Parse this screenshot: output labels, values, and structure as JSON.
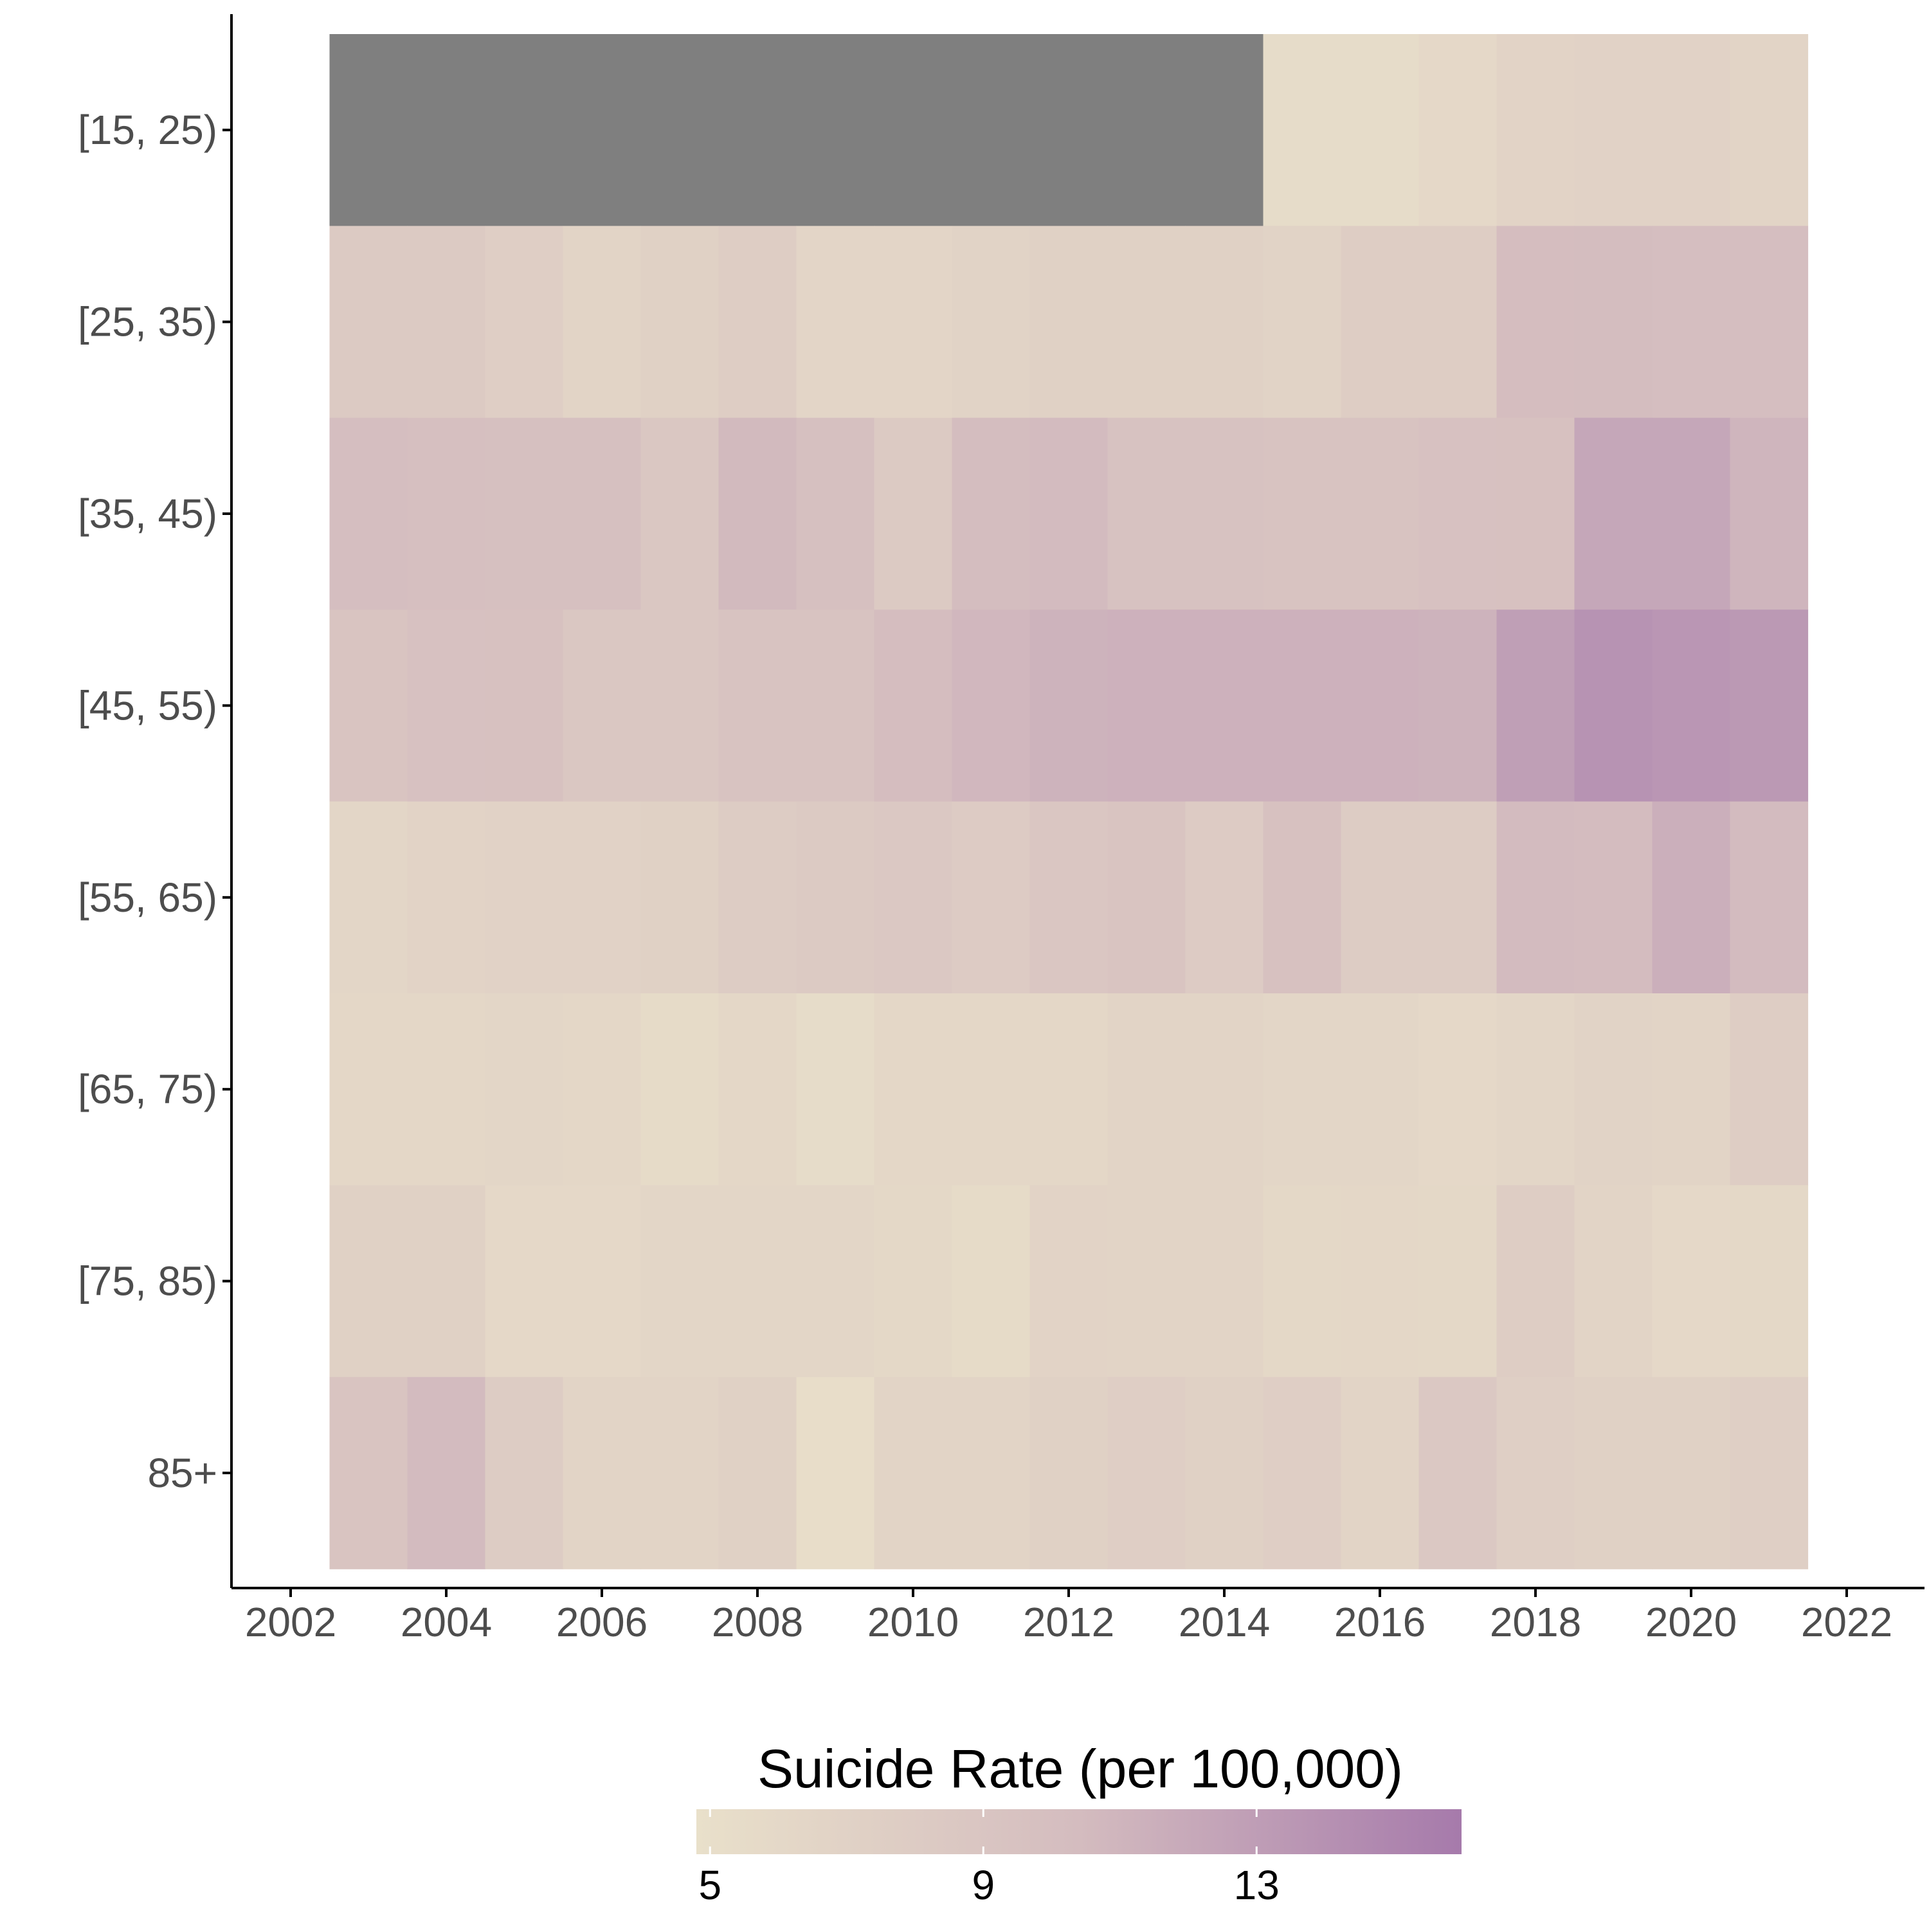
{
  "colors": {
    "low": "#e9e0ca",
    "mid": "#d4bcbf",
    "high": "#a67aab",
    "missing": "#7f7f7f",
    "axis": "#000000",
    "tick_text": "#4d4d4d"
  },
  "chart_data": {
    "type": "heatmap",
    "xlabel": "",
    "ylabel": "",
    "x_axis": {
      "lim": [
        2002,
        2023
      ],
      "ticks": [
        2002,
        2004,
        2006,
        2008,
        2010,
        2012,
        2014,
        2016,
        2018,
        2020,
        2022
      ],
      "tick_labels": [
        "2002",
        "2004",
        "2006",
        "2008",
        "2010",
        "2012",
        "2014",
        "2016",
        "2018",
        "2020",
        "2022"
      ]
    },
    "years": [
      2003,
      2004,
      2005,
      2006,
      2007,
      2008,
      2009,
      2010,
      2011,
      2012,
      2013,
      2014,
      2015,
      2016,
      2017,
      2018,
      2019,
      2020,
      2021
    ],
    "age_groups": [
      "[15, 25)",
      "[25, 35)",
      "[35, 45)",
      "[45, 55)",
      "[55, 65)",
      "[65, 75)",
      "[75, 85)",
      "85+"
    ],
    "values": [
      [
        null,
        null,
        null,
        null,
        null,
        null,
        null,
        null,
        null,
        null,
        null,
        null,
        5.5,
        5.5,
        6.0,
        6.8,
        7.0,
        7.0,
        6.6
      ],
      [
        8.3,
        8.3,
        7.6,
        6.7,
        7.2,
        7.7,
        6.5,
        6.5,
        6.9,
        7.1,
        7.2,
        7.2,
        6.9,
        7.8,
        7.8,
        10.2,
        10.3,
        10.1,
        10.1
      ],
      [
        10.1,
        10.0,
        9.8,
        9.8,
        8.7,
        10.6,
        9.8,
        8.3,
        10.3,
        10.5,
        9.5,
        9.5,
        9.3,
        9.3,
        9.6,
        9.7,
        12.2,
        12.2,
        11.0
      ],
      [
        9.2,
        9.6,
        9.7,
        8.7,
        8.7,
        9.3,
        9.3,
        10.2,
        10.8,
        11.2,
        11.3,
        11.3,
        11.3,
        11.3,
        11.2,
        12.9,
        13.9,
        13.6,
        13.4
      ],
      [
        6.4,
        6.8,
        7.0,
        7.0,
        7.2,
        7.9,
        8.2,
        8.5,
        8.0,
        8.9,
        9.2,
        8.0,
        9.7,
        7.9,
        7.9,
        10.5,
        10.4,
        11.5,
        10.5
      ],
      [
        6.2,
        6.2,
        6.3,
        6.2,
        5.6,
        6.2,
        5.5,
        6.2,
        6.2,
        6.2,
        6.6,
        6.6,
        6.4,
        6.4,
        6.0,
        6.4,
        6.9,
        6.6,
        7.7
      ],
      [
        7.2,
        7.2,
        6.0,
        6.0,
        6.4,
        6.4,
        6.4,
        6.1,
        5.6,
        6.8,
        6.6,
        6.6,
        6.1,
        6.2,
        6.1,
        7.8,
        6.6,
        6.0,
        6.1
      ],
      [
        9.2,
        10.5,
        7.9,
        6.7,
        6.7,
        7.2,
        5.2,
        6.6,
        6.6,
        7.2,
        7.6,
        7.1,
        7.6,
        6.7,
        8.5,
        7.4,
        7.1,
        7.2,
        7.5
      ]
    ],
    "legend": {
      "title": "Suicide Rate (per 100,000)",
      "placement": "bottom",
      "range": [
        4.8,
        16.0
      ],
      "breaks": [
        5,
        9,
        13
      ],
      "break_labels": [
        "5",
        "9",
        "13"
      ]
    }
  }
}
